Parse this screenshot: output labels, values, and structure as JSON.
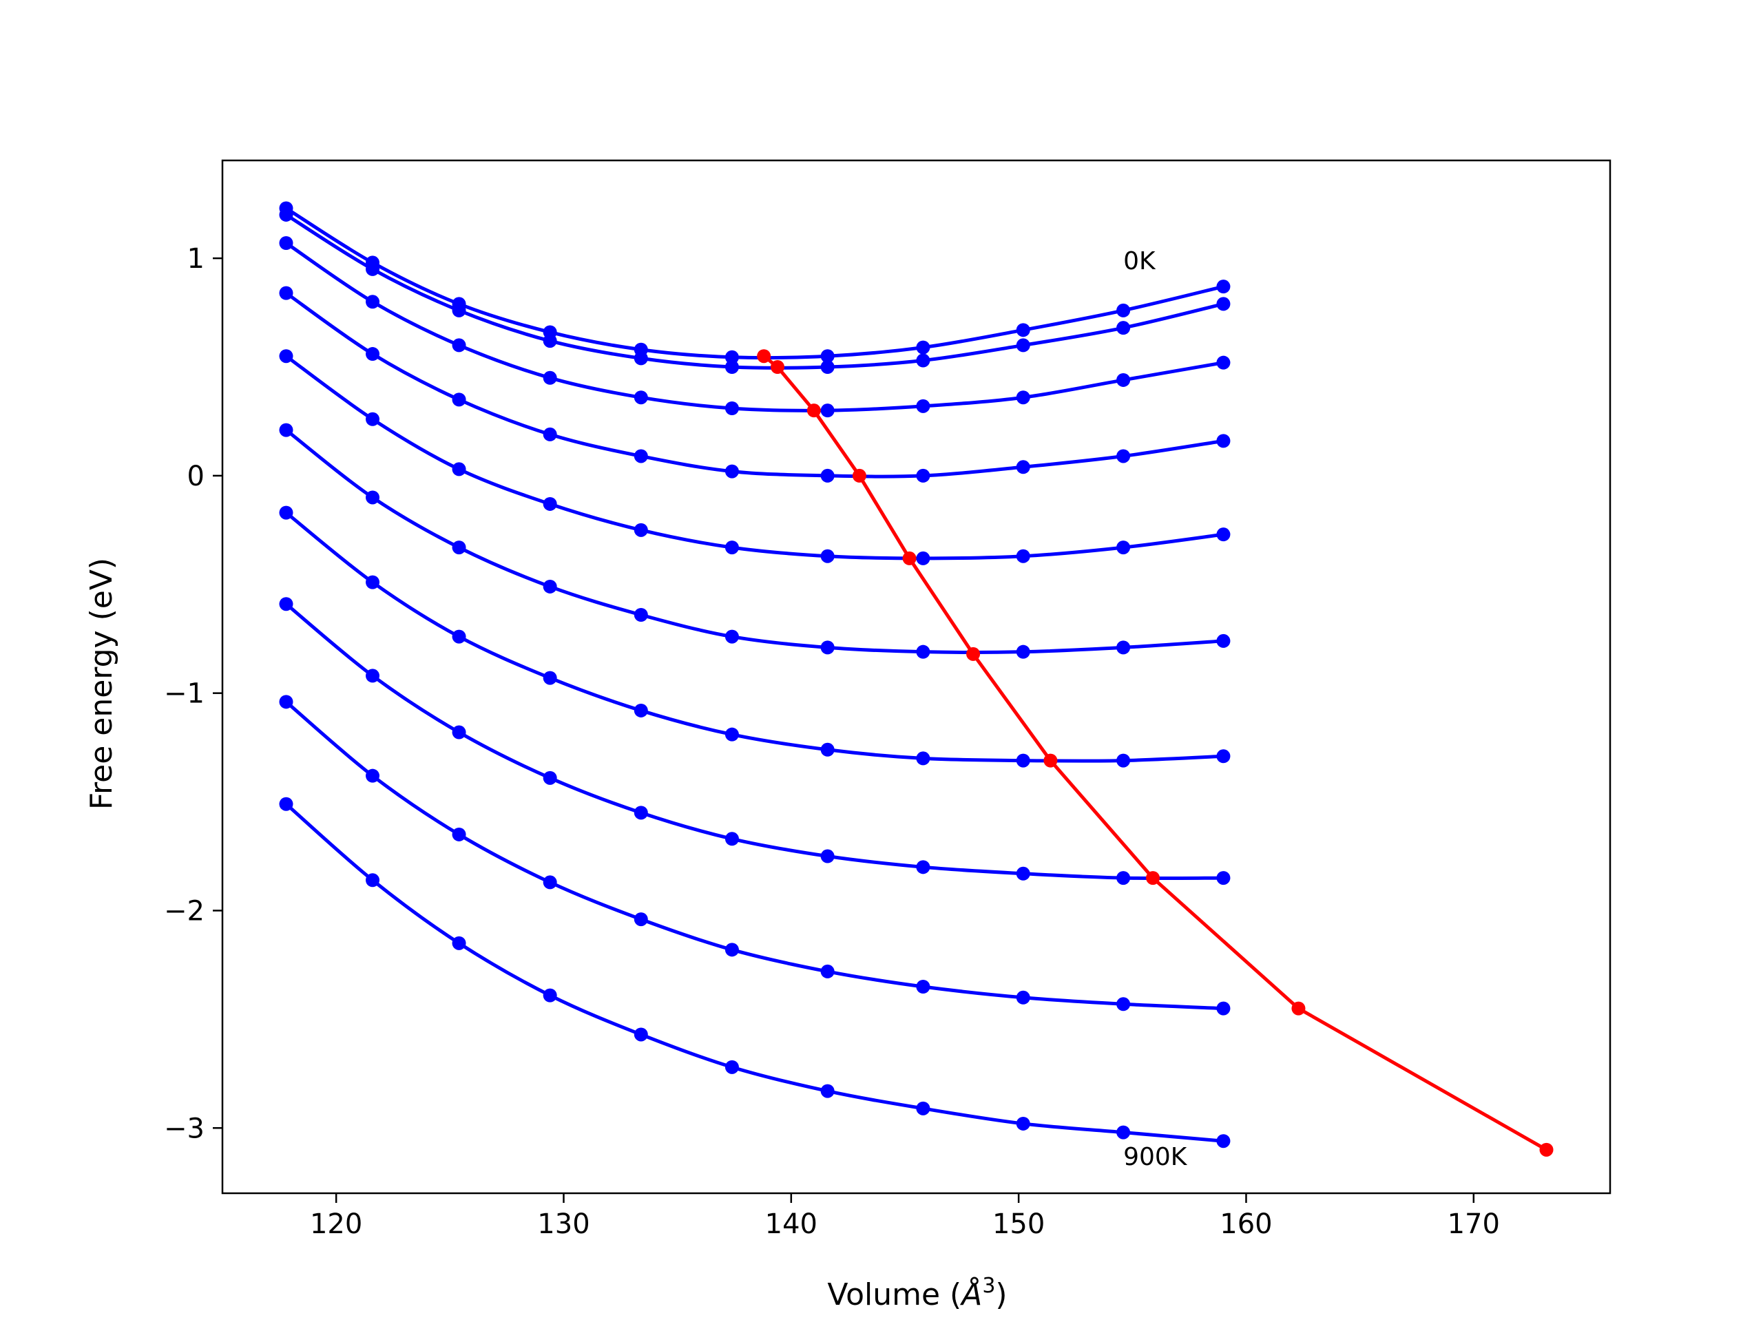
{
  "chart_data": {
    "type": "line",
    "xlabel": "Volume (",
    "xlabel_unit": "Å",
    "xlabel_sup": "3",
    "xlabel_close": ")",
    "ylabel": "Free energy (eV)",
    "xlim": [
      115,
      176
    ],
    "ylim": [
      -3.3,
      1.45
    ],
    "xticks": [
      120,
      130,
      140,
      150,
      160,
      170
    ],
    "yticks": [
      1,
      0,
      -1,
      -2,
      -3
    ],
    "ytick_labels": [
      "1",
      "0",
      "−1",
      "−2",
      "−3"
    ],
    "grid": false,
    "annotations": [
      {
        "text": "0K",
        "x": 154.6,
        "y": 0.95
      },
      {
        "text": "900K",
        "x": 154.6,
        "y": -3.17
      }
    ],
    "colors": {
      "isotherms": "#0000ff",
      "minimum": "#ff0000"
    },
    "x": [
      117.8,
      121.6,
      125.4,
      129.4,
      133.4,
      137.4,
      141.6,
      145.8,
      150.2,
      154.6,
      159.0
    ],
    "series": [
      {
        "color": "#0000ff",
        "values": [
          1.23,
          0.98,
          0.79,
          0.66,
          0.58,
          0.545,
          0.55,
          0.59,
          0.67,
          0.76,
          0.87
        ]
      },
      {
        "color": "#0000ff",
        "values": [
          1.2,
          0.95,
          0.76,
          0.62,
          0.54,
          0.5,
          0.5,
          0.53,
          0.6,
          0.68,
          0.79
        ]
      },
      {
        "color": "#0000ff",
        "values": [
          1.07,
          0.8,
          0.6,
          0.45,
          0.36,
          0.31,
          0.3,
          0.32,
          0.36,
          0.44,
          0.52
        ]
      },
      {
        "color": "#0000ff",
        "values": [
          0.84,
          0.56,
          0.35,
          0.19,
          0.09,
          0.02,
          0.0,
          0.0,
          0.04,
          0.09,
          0.16
        ]
      },
      {
        "color": "#0000ff",
        "values": [
          0.55,
          0.26,
          0.03,
          -0.13,
          -0.25,
          -0.33,
          -0.37,
          -0.38,
          -0.37,
          -0.33,
          -0.27
        ]
      },
      {
        "color": "#0000ff",
        "values": [
          0.21,
          -0.1,
          -0.33,
          -0.51,
          -0.64,
          -0.74,
          -0.79,
          -0.81,
          -0.81,
          -0.79,
          -0.76
        ]
      },
      {
        "color": "#0000ff",
        "values": [
          -0.17,
          -0.49,
          -0.74,
          -0.93,
          -1.08,
          -1.19,
          -1.26,
          -1.3,
          -1.31,
          -1.31,
          -1.29
        ]
      },
      {
        "color": "#0000ff",
        "values": [
          -0.59,
          -0.92,
          -1.18,
          -1.39,
          -1.55,
          -1.67,
          -1.75,
          -1.8,
          -1.83,
          -1.85,
          -1.85
        ]
      },
      {
        "color": "#0000ff",
        "values": [
          -1.04,
          -1.38,
          -1.65,
          -1.87,
          -2.04,
          -2.18,
          -2.28,
          -2.35,
          -2.4,
          -2.43,
          -2.45
        ]
      },
      {
        "color": "#0000ff",
        "values": [
          -1.51,
          -1.86,
          -2.15,
          -2.39,
          -2.57,
          -2.72,
          -2.83,
          -2.91,
          -2.98,
          -3.02,
          -3.06
        ]
      }
    ],
    "minimum_curve": {
      "color": "#ff0000",
      "x": [
        138.8,
        139.4,
        141.0,
        143.0,
        145.2,
        148.0,
        151.4,
        155.9,
        162.3,
        173.2
      ],
      "y": [
        0.55,
        0.5,
        0.3,
        0.0,
        -0.38,
        -0.82,
        -1.31,
        -1.85,
        -2.45,
        -3.1
      ]
    }
  }
}
